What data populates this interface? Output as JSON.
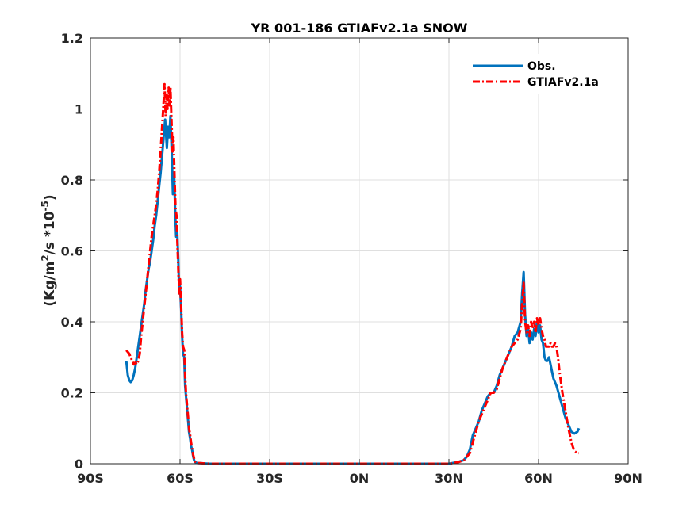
{
  "chart_data": {
    "type": "line",
    "title": "YR 001-186 GTIAFv2.1a SNOW",
    "xlabel": "",
    "ylabel": "(Kg/m",
    "ylabel_sup1": "2",
    "ylabel_mid": "/s *10",
    "ylabel_sup2": "-5",
    "ylabel_end": ")",
    "xlim": [
      -90,
      90
    ],
    "ylim": [
      0,
      1.2
    ],
    "grid": true,
    "legend_placement": "top-right",
    "x_ticks": [
      -90,
      -60,
      -30,
      0,
      30,
      60,
      90
    ],
    "x_tick_labels": [
      "90S",
      "60S",
      "30S",
      "0N",
      "30N",
      "60N",
      "90N"
    ],
    "y_ticks": [
      0,
      0.2,
      0.4,
      0.6,
      0.8,
      1,
      1.2
    ],
    "y_tick_labels": [
      "0",
      "0.2",
      "0.4",
      "0.6",
      "0.8",
      "1",
      "1.2"
    ],
    "series": [
      {
        "name": "Obs.",
        "color": "#0072BD",
        "style": "solid",
        "points": [
          [
            -78,
            0.29
          ],
          [
            -77.5,
            0.25
          ],
          [
            -77,
            0.235
          ],
          [
            -76.5,
            0.23
          ],
          [
            -76,
            0.235
          ],
          [
            -75.5,
            0.25
          ],
          [
            -75,
            0.27
          ],
          [
            -74.5,
            0.3
          ],
          [
            -74,
            0.33
          ],
          [
            -73.5,
            0.36
          ],
          [
            -73,
            0.39
          ],
          [
            -72.5,
            0.42
          ],
          [
            -72,
            0.45
          ],
          [
            -71.5,
            0.49
          ],
          [
            -71,
            0.52
          ],
          [
            -70.5,
            0.55
          ],
          [
            -70,
            0.57
          ],
          [
            -69.5,
            0.6
          ],
          [
            -69,
            0.63
          ],
          [
            -68.5,
            0.67
          ],
          [
            -68,
            0.7
          ],
          [
            -67.5,
            0.74
          ],
          [
            -67,
            0.78
          ],
          [
            -66.5,
            0.82
          ],
          [
            -66,
            0.87
          ],
          [
            -65.5,
            0.92
          ],
          [
            -65,
            0.97
          ],
          [
            -64.7,
            0.93
          ],
          [
            -64.4,
            0.89
          ],
          [
            -64,
            0.95
          ],
          [
            -63.6,
            0.92
          ],
          [
            -63.2,
            0.98
          ],
          [
            -62.8,
            0.88
          ],
          [
            -62.4,
            0.76
          ],
          [
            -62,
            0.82
          ],
          [
            -61.6,
            0.7
          ],
          [
            -61.3,
            0.64
          ],
          [
            -61,
            0.67
          ],
          [
            -60.6,
            0.58
          ],
          [
            -60.3,
            0.48
          ],
          [
            -60,
            0.5
          ],
          [
            -59.6,
            0.43
          ],
          [
            -59.3,
            0.36
          ],
          [
            -59,
            0.31
          ],
          [
            -58.6,
            0.3
          ],
          [
            -58.3,
            0.22
          ],
          [
            -58,
            0.19
          ],
          [
            -57.6,
            0.15
          ],
          [
            -57.3,
            0.12
          ],
          [
            -57,
            0.09
          ],
          [
            -56.6,
            0.07
          ],
          [
            -56.3,
            0.05
          ],
          [
            -56,
            0.04
          ],
          [
            -55.6,
            0.02
          ],
          [
            -55.3,
            0.01
          ],
          [
            -55,
            0.005
          ],
          [
            -54,
            0.002
          ],
          [
            -50,
            0
          ],
          [
            -40,
            0
          ],
          [
            -30,
            0
          ],
          [
            -20,
            0
          ],
          [
            -10,
            0
          ],
          [
            0,
            0
          ],
          [
            10,
            0
          ],
          [
            20,
            0
          ],
          [
            30,
            0
          ],
          [
            33,
            0.005
          ],
          [
            35,
            0.01
          ],
          [
            36,
            0.02
          ],
          [
            37,
            0.04
          ],
          [
            38,
            0.08
          ],
          [
            39,
            0.1
          ],
          [
            40,
            0.12
          ],
          [
            41,
            0.15
          ],
          [
            42,
            0.17
          ],
          [
            43,
            0.19
          ],
          [
            44,
            0.2
          ],
          [
            45,
            0.2
          ],
          [
            46,
            0.22
          ],
          [
            47,
            0.25
          ],
          [
            48,
            0.27
          ],
          [
            49,
            0.29
          ],
          [
            50,
            0.31
          ],
          [
            51,
            0.33
          ],
          [
            52,
            0.36
          ],
          [
            53,
            0.37
          ],
          [
            54,
            0.4
          ],
          [
            54.5,
            0.48
          ],
          [
            55,
            0.54
          ],
          [
            55.5,
            0.42
          ],
          [
            56,
            0.36
          ],
          [
            56.5,
            0.38
          ],
          [
            57,
            0.34
          ],
          [
            57.5,
            0.37
          ],
          [
            58,
            0.35
          ],
          [
            58.5,
            0.38
          ],
          [
            59,
            0.36
          ],
          [
            59.5,
            0.4
          ],
          [
            60,
            0.37
          ],
          [
            60.5,
            0.39
          ],
          [
            61,
            0.35
          ],
          [
            61.5,
            0.34
          ],
          [
            62,
            0.3
          ],
          [
            62.5,
            0.29
          ],
          [
            63,
            0.29
          ],
          [
            63.5,
            0.3
          ],
          [
            64,
            0.28
          ],
          [
            64.5,
            0.26
          ],
          [
            65,
            0.24
          ],
          [
            66,
            0.22
          ],
          [
            67,
            0.19
          ],
          [
            68,
            0.16
          ],
          [
            69,
            0.13
          ],
          [
            70,
            0.11
          ],
          [
            71,
            0.09
          ],
          [
            72,
            0.085
          ],
          [
            73,
            0.09
          ],
          [
            73.5,
            0.1
          ]
        ]
      },
      {
        "name": "GTIAFv2.1a",
        "color": "#FF0000",
        "style": "dashdot",
        "points": [
          [
            -78,
            0.32
          ],
          [
            -77.5,
            0.315
          ],
          [
            -77,
            0.31
          ],
          [
            -76.5,
            0.3
          ],
          [
            -76,
            0.29
          ],
          [
            -75.5,
            0.28
          ],
          [
            -75,
            0.285
          ],
          [
            -74.5,
            0.28
          ],
          [
            -74,
            0.29
          ],
          [
            -73.5,
            0.31
          ],
          [
            -73,
            0.36
          ],
          [
            -72.5,
            0.4
          ],
          [
            -72,
            0.44
          ],
          [
            -71.5,
            0.48
          ],
          [
            -71,
            0.52
          ],
          [
            -70.5,
            0.56
          ],
          [
            -70,
            0.6
          ],
          [
            -69.5,
            0.64
          ],
          [
            -69,
            0.67
          ],
          [
            -68.5,
            0.7
          ],
          [
            -68,
            0.73
          ],
          [
            -67.5,
            0.77
          ],
          [
            -67,
            0.82
          ],
          [
            -66.5,
            0.88
          ],
          [
            -66,
            0.95
          ],
          [
            -65.5,
            1.02
          ],
          [
            -65.2,
            1.07
          ],
          [
            -64.8,
            0.98
          ],
          [
            -64.5,
            1.04
          ],
          [
            -64.2,
            1.0
          ],
          [
            -63.8,
            1.06
          ],
          [
            -63.5,
            1.01
          ],
          [
            -63.2,
            1.06
          ],
          [
            -62.8,
            0.95
          ],
          [
            -62.5,
            0.88
          ],
          [
            -62.2,
            0.92
          ],
          [
            -61.8,
            0.8
          ],
          [
            -61.5,
            0.72
          ],
          [
            -61.2,
            0.7
          ],
          [
            -60.8,
            0.6
          ],
          [
            -60.5,
            0.53
          ],
          [
            -60.2,
            0.48
          ],
          [
            -60,
            0.52
          ],
          [
            -59.6,
            0.44
          ],
          [
            -59.3,
            0.37
          ],
          [
            -59,
            0.33
          ],
          [
            -58.6,
            0.32
          ],
          [
            -58.3,
            0.25
          ],
          [
            -58,
            0.2
          ],
          [
            -57.6,
            0.16
          ],
          [
            -57.3,
            0.13
          ],
          [
            -57,
            0.1
          ],
          [
            -56.6,
            0.08
          ],
          [
            -56.3,
            0.06
          ],
          [
            -56,
            0.045
          ],
          [
            -55.6,
            0.025
          ],
          [
            -55.3,
            0.015
          ],
          [
            -55,
            0.006
          ],
          [
            -54,
            0.002
          ],
          [
            -50,
            0
          ],
          [
            -40,
            0
          ],
          [
            -30,
            0
          ],
          [
            -20,
            0
          ],
          [
            -10,
            0
          ],
          [
            0,
            0
          ],
          [
            10,
            0
          ],
          [
            20,
            0
          ],
          [
            30,
            0
          ],
          [
            33,
            0.004
          ],
          [
            35,
            0.01
          ],
          [
            36,
            0.02
          ],
          [
            37,
            0.03
          ],
          [
            38,
            0.06
          ],
          [
            39,
            0.09
          ],
          [
            40,
            0.12
          ],
          [
            41,
            0.14
          ],
          [
            42,
            0.16
          ],
          [
            43,
            0.18
          ],
          [
            44,
            0.2
          ],
          [
            45,
            0.2
          ],
          [
            46,
            0.21
          ],
          [
            47,
            0.24
          ],
          [
            48,
            0.27
          ],
          [
            49,
            0.29
          ],
          [
            50,
            0.31
          ],
          [
            51,
            0.33
          ],
          [
            52,
            0.34
          ],
          [
            53,
            0.35
          ],
          [
            54,
            0.38
          ],
          [
            54.5,
            0.45
          ],
          [
            55,
            0.51
          ],
          [
            55.5,
            0.4
          ],
          [
            56,
            0.37
          ],
          [
            56.5,
            0.39
          ],
          [
            57,
            0.36
          ],
          [
            57.5,
            0.4
          ],
          [
            58,
            0.38
          ],
          [
            58.5,
            0.4
          ],
          [
            59,
            0.37
          ],
          [
            59.5,
            0.41
          ],
          [
            60,
            0.39
          ],
          [
            60.5,
            0.41
          ],
          [
            61,
            0.38
          ],
          [
            61.5,
            0.36
          ],
          [
            62,
            0.35
          ],
          [
            62.5,
            0.33
          ],
          [
            63,
            0.33
          ],
          [
            63.5,
            0.33
          ],
          [
            64,
            0.34
          ],
          [
            64.5,
            0.33
          ],
          [
            65,
            0.33
          ],
          [
            65.5,
            0.34
          ],
          [
            66,
            0.33
          ],
          [
            66.5,
            0.3
          ],
          [
            67,
            0.26
          ],
          [
            68,
            0.2
          ],
          [
            69,
            0.15
          ],
          [
            70,
            0.1
          ],
          [
            71,
            0.06
          ],
          [
            72,
            0.035
          ],
          [
            73,
            0.03
          ],
          [
            73.5,
            0.03
          ]
        ]
      }
    ]
  }
}
